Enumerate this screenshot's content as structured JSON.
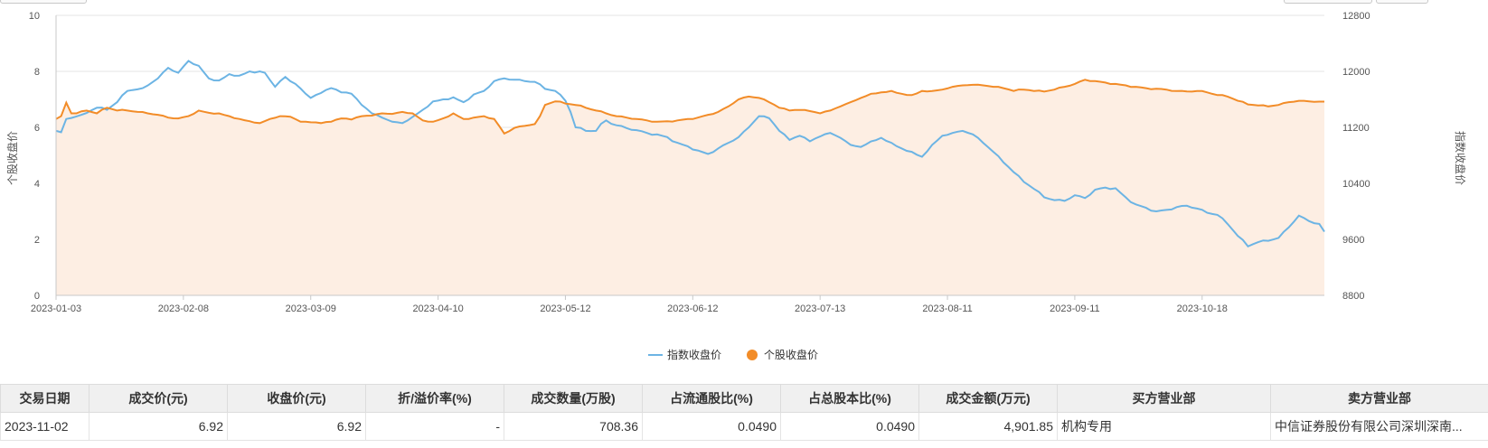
{
  "colors": {
    "index_line": "#6cb4e4",
    "stock_line": "#f28c28",
    "area_fill": "#fdeee3",
    "grid": "#e6e6e6",
    "axis": "#c8c8c8"
  },
  "chart_data": {
    "type": "line",
    "grid": true,
    "legend_position": "bottom-center",
    "left_axis": {
      "label": "个股收盘价",
      "ticks": [
        "0",
        "2",
        "4",
        "6",
        "8",
        "10"
      ],
      "range": [
        0,
        10
      ]
    },
    "right_axis": {
      "label": "指数收盘价",
      "ticks": [
        "8800",
        "9600",
        "10400",
        "11200",
        "12000",
        "12800"
      ],
      "range": [
        8800,
        12800
      ]
    },
    "x_ticks": [
      "2023-01-03",
      "2023-02-08",
      "2023-03-09",
      "2023-04-10",
      "2023-05-12",
      "2023-06-12",
      "2023-07-13",
      "2023-08-11",
      "2023-09-11",
      "2023-10-18"
    ],
    "x_tick_positions": [
      0,
      25,
      50,
      75,
      100,
      125,
      150,
      175,
      200,
      225
    ],
    "series": [
      {
        "name": "指数收盘价",
        "axis": "right",
        "color": "#6cb4e4",
        "anchors": [
          [
            0,
            11150
          ],
          [
            1,
            11130
          ],
          [
            2,
            11320
          ],
          [
            5,
            11380
          ],
          [
            8,
            11480
          ],
          [
            10,
            11450
          ],
          [
            12,
            11560
          ],
          [
            14,
            11720
          ],
          [
            17,
            11760
          ],
          [
            20,
            11900
          ],
          [
            22,
            12050
          ],
          [
            24,
            11980
          ],
          [
            26,
            12150
          ],
          [
            28,
            12080
          ],
          [
            30,
            11900
          ],
          [
            32,
            11870
          ],
          [
            34,
            11960
          ],
          [
            36,
            11940
          ],
          [
            38,
            12000
          ],
          [
            41,
            11980
          ],
          [
            43,
            11780
          ],
          [
            45,
            11920
          ],
          [
            47,
            11820
          ],
          [
            49,
            11680
          ],
          [
            50,
            11620
          ],
          [
            52,
            11690
          ],
          [
            54,
            11760
          ],
          [
            56,
            11700
          ],
          [
            58,
            11680
          ],
          [
            60,
            11520
          ],
          [
            62,
            11400
          ],
          [
            64,
            11340
          ],
          [
            66,
            11280
          ],
          [
            68,
            11260
          ],
          [
            70,
            11350
          ],
          [
            72,
            11450
          ],
          [
            74,
            11570
          ],
          [
            76,
            11600
          ],
          [
            78,
            11630
          ],
          [
            80,
            11560
          ],
          [
            82,
            11670
          ],
          [
            84,
            11720
          ],
          [
            86,
            11860
          ],
          [
            88,
            11900
          ],
          [
            90,
            11880
          ],
          [
            92,
            11860
          ],
          [
            94,
            11850
          ],
          [
            96,
            11750
          ],
          [
            98,
            11720
          ],
          [
            100,
            11580
          ],
          [
            101,
            11420
          ],
          [
            102,
            11200
          ],
          [
            104,
            11150
          ],
          [
            106,
            11150
          ],
          [
            107,
            11250
          ],
          [
            108,
            11300
          ],
          [
            109,
            11250
          ],
          [
            112,
            11190
          ],
          [
            114,
            11160
          ],
          [
            116,
            11120
          ],
          [
            118,
            11100
          ],
          [
            120,
            11060
          ],
          [
            122,
            10980
          ],
          [
            124,
            10930
          ],
          [
            126,
            10870
          ],
          [
            128,
            10820
          ],
          [
            130,
            10900
          ],
          [
            132,
            10980
          ],
          [
            134,
            11060
          ],
          [
            136,
            11200
          ],
          [
            137,
            11280
          ],
          [
            138,
            11360
          ],
          [
            140,
            11330
          ],
          [
            142,
            11150
          ],
          [
            144,
            11020
          ],
          [
            146,
            11080
          ],
          [
            148,
            11000
          ],
          [
            150,
            11070
          ],
          [
            152,
            11120
          ],
          [
            154,
            11050
          ],
          [
            156,
            10950
          ],
          [
            158,
            10920
          ],
          [
            160,
            11000
          ],
          [
            162,
            11050
          ],
          [
            164,
            10980
          ],
          [
            166,
            10900
          ],
          [
            168,
            10850
          ],
          [
            170,
            10780
          ],
          [
            172,
            10950
          ],
          [
            174,
            11080
          ],
          [
            176,
            11120
          ],
          [
            178,
            11150
          ],
          [
            180,
            11100
          ],
          [
            182,
            10980
          ],
          [
            184,
            10850
          ],
          [
            186,
            10700
          ],
          [
            188,
            10560
          ],
          [
            190,
            10420
          ],
          [
            192,
            10320
          ],
          [
            194,
            10200
          ],
          [
            196,
            10160
          ],
          [
            198,
            10150
          ],
          [
            200,
            10230
          ],
          [
            202,
            10190
          ],
          [
            204,
            10310
          ],
          [
            206,
            10340
          ],
          [
            208,
            10330
          ],
          [
            210,
            10200
          ],
          [
            212,
            10100
          ],
          [
            214,
            10050
          ],
          [
            216,
            10000
          ],
          [
            218,
            10020
          ],
          [
            220,
            10060
          ],
          [
            222,
            10080
          ],
          [
            224,
            10040
          ],
          [
            226,
            9980
          ],
          [
            228,
            9950
          ],
          [
            230,
            9820
          ],
          [
            232,
            9650
          ],
          [
            234,
            9500
          ],
          [
            236,
            9560
          ],
          [
            238,
            9580
          ],
          [
            240,
            9620
          ],
          [
            242,
            9770
          ],
          [
            244,
            9940
          ],
          [
            246,
            9860
          ],
          [
            248,
            9820
          ],
          [
            249,
            9710
          ]
        ]
      },
      {
        "name": "个股收盘价",
        "axis": "left",
        "color": "#f28c28",
        "anchors": [
          [
            0,
            6.3
          ],
          [
            1,
            6.4
          ],
          [
            2,
            6.88
          ],
          [
            3,
            6.5
          ],
          [
            4,
            6.5
          ],
          [
            6,
            6.6
          ],
          [
            8,
            6.5
          ],
          [
            10,
            6.7
          ],
          [
            12,
            6.6
          ],
          [
            14,
            6.6
          ],
          [
            16,
            6.55
          ],
          [
            18,
            6.5
          ],
          [
            20,
            6.45
          ],
          [
            22,
            6.35
          ],
          [
            24,
            6.32
          ],
          [
            26,
            6.4
          ],
          [
            28,
            6.6
          ],
          [
            30,
            6.52
          ],
          [
            32,
            6.5
          ],
          [
            34,
            6.4
          ],
          [
            36,
            6.3
          ],
          [
            38,
            6.22
          ],
          [
            40,
            6.15
          ],
          [
            42,
            6.3
          ],
          [
            44,
            6.4
          ],
          [
            46,
            6.38
          ],
          [
            48,
            6.2
          ],
          [
            50,
            6.18
          ],
          [
            52,
            6.15
          ],
          [
            54,
            6.2
          ],
          [
            56,
            6.32
          ],
          [
            58,
            6.28
          ],
          [
            60,
            6.4
          ],
          [
            62,
            6.42
          ],
          [
            64,
            6.5
          ],
          [
            66,
            6.48
          ],
          [
            68,
            6.55
          ],
          [
            70,
            6.5
          ],
          [
            72,
            6.25
          ],
          [
            74,
            6.2
          ],
          [
            76,
            6.32
          ],
          [
            78,
            6.5
          ],
          [
            80,
            6.3
          ],
          [
            82,
            6.35
          ],
          [
            84,
            6.4
          ],
          [
            86,
            6.3
          ],
          [
            88,
            5.78
          ],
          [
            90,
            5.98
          ],
          [
            92,
            6.05
          ],
          [
            94,
            6.12
          ],
          [
            95,
            6.4
          ],
          [
            96,
            6.8
          ],
          [
            98,
            6.93
          ],
          [
            100,
            6.85
          ],
          [
            102,
            6.8
          ],
          [
            104,
            6.7
          ],
          [
            106,
            6.6
          ],
          [
            108,
            6.5
          ],
          [
            110,
            6.4
          ],
          [
            112,
            6.35
          ],
          [
            114,
            6.3
          ],
          [
            116,
            6.25
          ],
          [
            118,
            6.2
          ],
          [
            120,
            6.22
          ],
          [
            122,
            6.25
          ],
          [
            124,
            6.3
          ],
          [
            126,
            6.35
          ],
          [
            128,
            6.45
          ],
          [
            130,
            6.55
          ],
          [
            132,
            6.75
          ],
          [
            134,
            7.0
          ],
          [
            136,
            7.1
          ],
          [
            138,
            7.05
          ],
          [
            140,
            6.9
          ],
          [
            142,
            6.7
          ],
          [
            144,
            6.6
          ],
          [
            146,
            6.62
          ],
          [
            148,
            6.58
          ],
          [
            150,
            6.5
          ],
          [
            152,
            6.6
          ],
          [
            154,
            6.75
          ],
          [
            156,
            6.9
          ],
          [
            158,
            7.05
          ],
          [
            160,
            7.2
          ],
          [
            162,
            7.25
          ],
          [
            164,
            7.3
          ],
          [
            166,
            7.2
          ],
          [
            168,
            7.15
          ],
          [
            170,
            7.3
          ],
          [
            172,
            7.3
          ],
          [
            174,
            7.35
          ],
          [
            176,
            7.45
          ],
          [
            178,
            7.5
          ],
          [
            180,
            7.52
          ],
          [
            182,
            7.5
          ],
          [
            184,
            7.45
          ],
          [
            186,
            7.4
          ],
          [
            188,
            7.3
          ],
          [
            190,
            7.35
          ],
          [
            192,
            7.3
          ],
          [
            194,
            7.28
          ],
          [
            196,
            7.35
          ],
          [
            198,
            7.45
          ],
          [
            200,
            7.55
          ],
          [
            202,
            7.7
          ],
          [
            204,
            7.65
          ],
          [
            206,
            7.6
          ],
          [
            208,
            7.55
          ],
          [
            210,
            7.5
          ],
          [
            212,
            7.45
          ],
          [
            214,
            7.4
          ],
          [
            216,
            7.38
          ],
          [
            218,
            7.35
          ],
          [
            220,
            7.3
          ],
          [
            222,
            7.28
          ],
          [
            224,
            7.3
          ],
          [
            226,
            7.25
          ],
          [
            228,
            7.15
          ],
          [
            230,
            7.1
          ],
          [
            232,
            6.95
          ],
          [
            234,
            6.82
          ],
          [
            236,
            6.78
          ],
          [
            238,
            6.75
          ],
          [
            240,
            6.8
          ],
          [
            242,
            6.9
          ],
          [
            244,
            6.95
          ],
          [
            246,
            6.93
          ],
          [
            248,
            6.92
          ],
          [
            249,
            6.92
          ]
        ]
      }
    ]
  },
  "legend": {
    "index_label": "指数收盘价",
    "stock_label": "个股收盘价"
  },
  "table": {
    "headers": {
      "date": "交易日期",
      "price": "成交价(元)",
      "close": "收盘价(元)",
      "premium": "折/溢价率(%)",
      "volume": "成交数量(万股)",
      "float_ratio": "占流通股比(%)",
      "total_ratio": "占总股本比(%)",
      "amount": "成交金额(万元)",
      "buyer": "买方营业部",
      "seller": "卖方营业部"
    },
    "rows": [
      {
        "date": "2023-11-02",
        "price": "6.92",
        "close": "6.92",
        "premium": "-",
        "volume": "708.36",
        "float_ratio": "0.0490",
        "total_ratio": "0.0490",
        "amount": "4,901.85",
        "buyer": "机构专用",
        "seller": "中信证券股份有限公司深圳深南..."
      }
    ]
  }
}
